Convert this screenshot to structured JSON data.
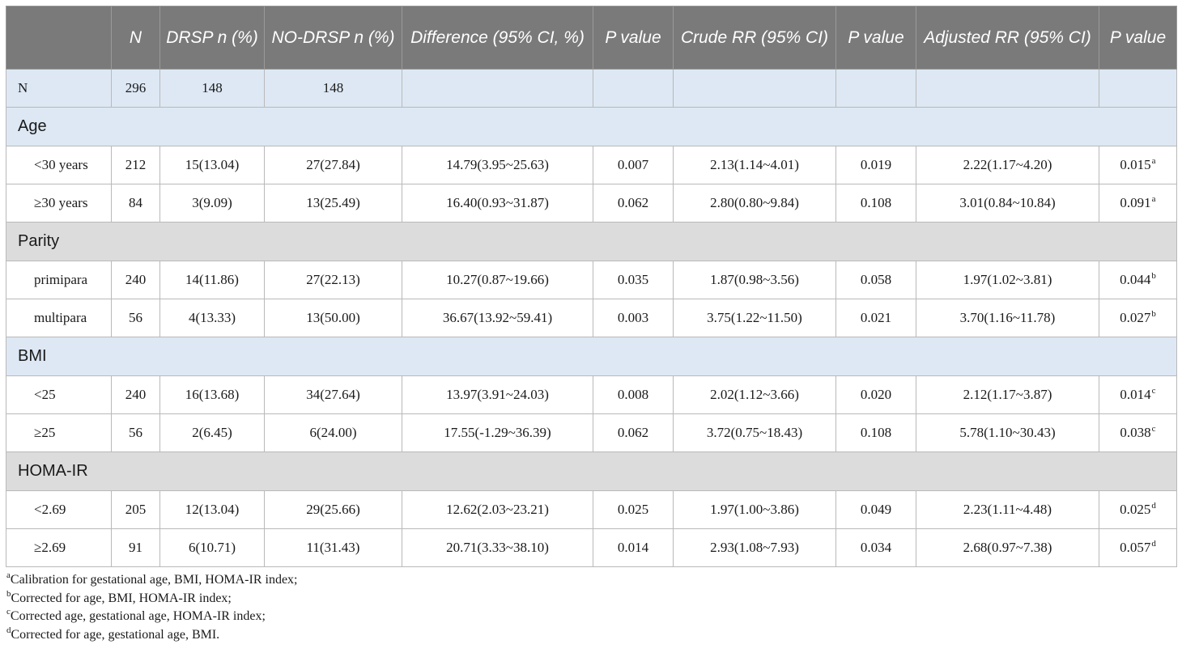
{
  "table": {
    "headers": [
      "",
      "N",
      "DRSP n (%)",
      "NO-DRSP n (%)",
      "Difference (95% CI, %)",
      "P value",
      "Crude RR (95% CI)",
      "P value",
      "Adjusted RR (95% CI)",
      "P value"
    ],
    "n_row": {
      "label": "N",
      "n": "296",
      "drsp": "148",
      "no_drsp": "148"
    },
    "groups": [
      {
        "name": "Age",
        "rows": [
          {
            "label": "<30 years",
            "n": "212",
            "drsp": "15(13.04)",
            "no_drsp": "27(27.84)",
            "diff": "14.79(3.95~25.63)",
            "p1": "0.007",
            "crude": "2.13(1.14~4.01)",
            "p2": "0.019",
            "adj": "2.22(1.17~4.20)",
            "p3": "0.015",
            "sup": "a"
          },
          {
            "label": "≥30 years",
            "n": "84",
            "drsp": "3(9.09)",
            "no_drsp": "13(25.49)",
            "diff": "16.40(0.93~31.87)",
            "p1": "0.062",
            "crude": "2.80(0.80~9.84)",
            "p2": "0.108",
            "adj": "3.01(0.84~10.84)",
            "p3": "0.091",
            "sup": "a"
          }
        ]
      },
      {
        "name": "Parity",
        "rows": [
          {
            "label": "primipara",
            "n": "240",
            "drsp": "14(11.86)",
            "no_drsp": "27(22.13)",
            "diff": "10.27(0.87~19.66)",
            "p1": "0.035",
            "crude": "1.87(0.98~3.56)",
            "p2": "0.058",
            "adj": "1.97(1.02~3.81)",
            "p3": "0.044",
            "sup": "b"
          },
          {
            "label": "multipara",
            "n": "56",
            "drsp": "4(13.33)",
            "no_drsp": "13(50.00)",
            "diff": "36.67(13.92~59.41)",
            "p1": "0.003",
            "crude": "3.75(1.22~11.50)",
            "p2": "0.021",
            "adj": "3.70(1.16~11.78)",
            "p3": "0.027",
            "sup": "b"
          }
        ]
      },
      {
        "name": "BMI",
        "rows": [
          {
            "label": "<25",
            "n": "240",
            "drsp": "16(13.68)",
            "no_drsp": "34(27.64)",
            "diff": "13.97(3.91~24.03)",
            "p1": "0.008",
            "crude": "2.02(1.12~3.66)",
            "p2": "0.020",
            "adj": "2.12(1.17~3.87)",
            "p3": "0.014",
            "sup": "c"
          },
          {
            "label": "≥25",
            "n": "56",
            "drsp": "2(6.45)",
            "no_drsp": "6(24.00)",
            "diff": "17.55(-1.29~36.39)",
            "p1": "0.062",
            "crude": "3.72(0.75~18.43)",
            "p2": "0.108",
            "adj": "5.78(1.10~30.43)",
            "p3": "0.038",
            "sup": "c"
          }
        ]
      },
      {
        "name": "HOMA-IR",
        "rows": [
          {
            "label": "<2.69",
            "n": "205",
            "drsp": "12(13.04)",
            "no_drsp": "29(25.66)",
            "diff": "12.62(2.03~23.21)",
            "p1": "0.025",
            "crude": "1.97(1.00~3.86)",
            "p2": "0.049",
            "adj": "2.23(1.11~4.48)",
            "p3": "0.025",
            "sup": "d"
          },
          {
            "label": "≥2.69",
            "n": "91",
            "drsp": "6(10.71)",
            "no_drsp": "11(31.43)",
            "diff": "20.71(3.33~38.10)",
            "p1": "0.014",
            "crude": "2.93(1.08~7.93)",
            "p2": "0.034",
            "adj": "2.68(0.97~7.38)",
            "p3": "0.057",
            "sup": "d"
          }
        ]
      }
    ]
  },
  "footnotes": [
    {
      "mark": "a",
      "text": "Calibration for gestational age, BMI, HOMA-IR index;"
    },
    {
      "mark": "b",
      "text": "Corrected for age, BMI, HOMA-IR index;"
    },
    {
      "mark": "c",
      "text": "Corrected age, gestational age, HOMA-IR index;"
    },
    {
      "mark": "d",
      "text": "Corrected for age, gestational age, BMI."
    }
  ],
  "colors": {
    "header_bg": "#7a7a7a",
    "blue_row": "#dde8f4",
    "grey_row": "#dcdcdc"
  }
}
